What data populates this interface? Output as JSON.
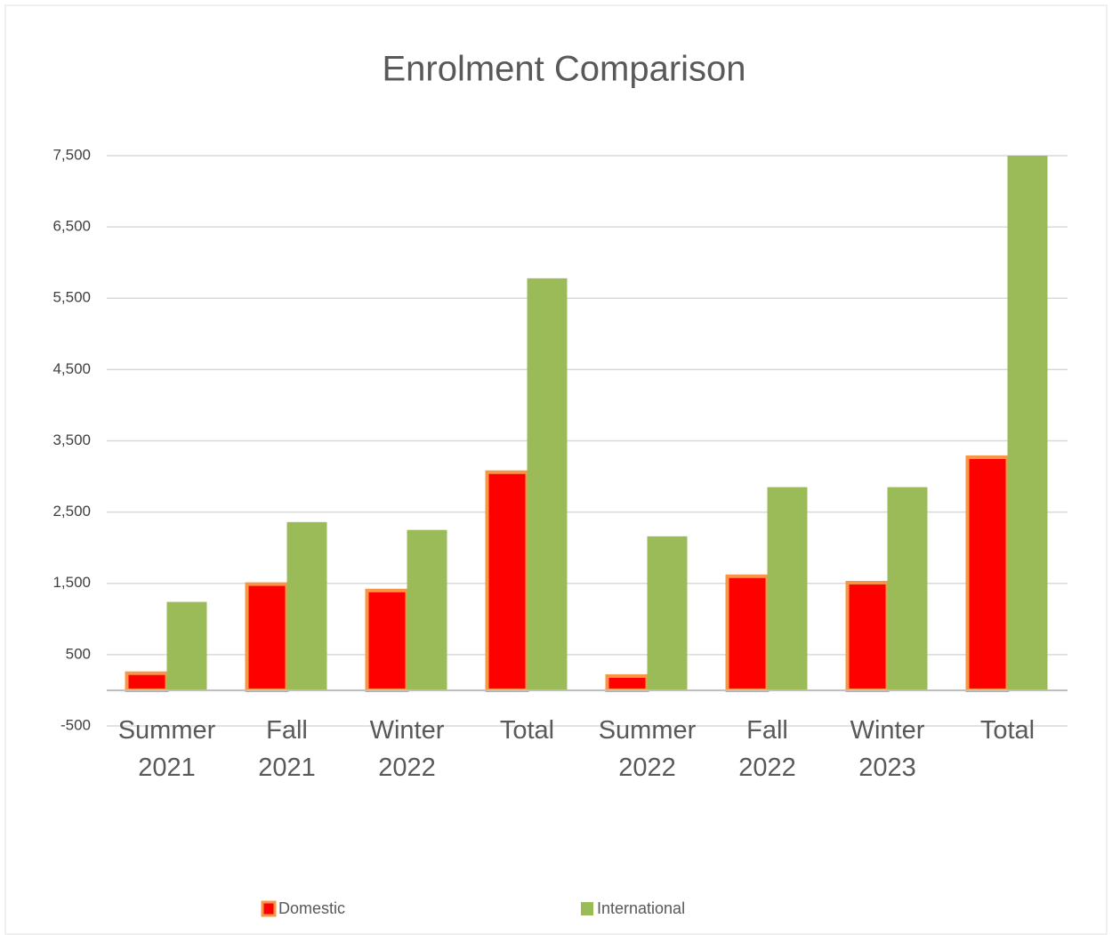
{
  "chart_data": {
    "type": "bar",
    "title": "Enrolment Comparison",
    "categories": [
      "Summer 2021",
      "Fall 2021",
      "Winter 2022",
      "Total",
      "Summer 2022",
      "Fall 2022",
      "Winter 2023",
      "Total"
    ],
    "series": [
      {
        "name": "Domestic",
        "color": "#ff0000",
        "edge": "#f79646",
        "values": [
          240,
          1490,
          1400,
          3060,
          200,
          1600,
          1510,
          3270
        ]
      },
      {
        "name": "International",
        "color": "#9bbb59",
        "values": [
          1240,
          2360,
          2250,
          5780,
          2160,
          2850,
          2850,
          7500
        ]
      }
    ],
    "ylim": [
      -500,
      7500
    ],
    "yticks": [
      -500,
      500,
      {
        "value": 1500,
        "label": "1,500"
      },
      {
        "value": 2500,
        "label": "2,500"
      },
      {
        "value": 3500,
        "label": "3,500"
      },
      {
        "value": 4500,
        "label": "4,500"
      },
      {
        "value": 5500,
        "label": "5,500"
      },
      {
        "value": 6500,
        "label": "6,500"
      },
      {
        "value": 7500,
        "label": "7,500"
      }
    ],
    "grid": true,
    "legend": "bottom"
  }
}
